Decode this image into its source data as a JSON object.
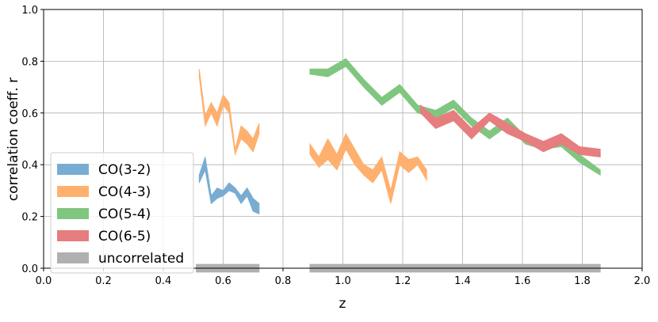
{
  "chart_data": {
    "type": "band",
    "xlabel": "z",
    "ylabel": "correlation coeff. r",
    "xlim": [
      0,
      2
    ],
    "ylim": [
      0,
      1
    ],
    "xticks": [
      {
        "value": 0,
        "label": "0.0"
      },
      {
        "value": 0.2,
        "label": "0.2"
      },
      {
        "value": 0.4,
        "label": "0.4"
      },
      {
        "value": 0.6,
        "label": "0.6"
      },
      {
        "value": 0.8,
        "label": "0.8"
      },
      {
        "value": 1,
        "label": "1.0"
      },
      {
        "value": 1.2,
        "label": "1.2"
      },
      {
        "value": 1.4,
        "label": "1.4"
      },
      {
        "value": 1.6,
        "label": "1.6"
      },
      {
        "value": 1.8,
        "label": "1.8"
      },
      {
        "value": 2,
        "label": "2.0"
      }
    ],
    "yticks": [
      {
        "value": 0,
        "label": "0.0"
      },
      {
        "value": 0.2,
        "label": "0.2"
      },
      {
        "value": 0.4,
        "label": "0.4"
      },
      {
        "value": 0.6,
        "label": "0.6"
      },
      {
        "value": 0.8,
        "label": "0.8"
      },
      {
        "value": 1,
        "label": "1.0"
      }
    ],
    "grid": true,
    "legend": "lower left",
    "series": [
      {
        "name": "CO(3-2)",
        "color": "#79acd2",
        "x": [
          0.52,
          0.54,
          0.56,
          0.58,
          0.6,
          0.62,
          0.64,
          0.66,
          0.68,
          0.7,
          0.72
        ],
        "lower": [
          0.33,
          0.38,
          0.25,
          0.27,
          0.28,
          0.3,
          0.29,
          0.25,
          0.28,
          0.22,
          0.21
        ],
        "upper": [
          0.36,
          0.43,
          0.28,
          0.31,
          0.3,
          0.33,
          0.31,
          0.28,
          0.31,
          0.27,
          0.25
        ]
      },
      {
        "name": "CO(4-3)",
        "color": "#ffb06e",
        "x": [
          0.52,
          0.54,
          0.56,
          0.58,
          0.6,
          0.62,
          0.64,
          0.66,
          0.68,
          0.7,
          0.72,
          0.8,
          0.89,
          0.92,
          0.95,
          0.98,
          1.01,
          1.04,
          1.07,
          1.1,
          1.13,
          1.16,
          1.19,
          1.22,
          1.25,
          1.28
        ],
        "lower": [
          0.74,
          0.55,
          0.6,
          0.55,
          0.63,
          0.6,
          0.44,
          0.5,
          0.48,
          0.45,
          0.52,
          null,
          0.44,
          0.39,
          0.42,
          0.38,
          0.46,
          0.4,
          0.36,
          0.33,
          0.38,
          0.25,
          0.4,
          0.37,
          0.4,
          0.34
        ],
        "upper": [
          0.77,
          0.59,
          0.64,
          0.6,
          0.67,
          0.64,
          0.46,
          0.55,
          0.53,
          0.5,
          0.56,
          null,
          0.48,
          0.43,
          0.5,
          0.44,
          0.52,
          0.46,
          0.4,
          0.38,
          0.43,
          0.3,
          0.45,
          0.42,
          0.43,
          0.38
        ]
      },
      {
        "name": "CO(5-4)",
        "color": "#80c680",
        "x": [
          0.89,
          0.95,
          1.01,
          1.07,
          1.13,
          1.19,
          1.25,
          1.31,
          1.37,
          1.43,
          1.49,
          1.55,
          1.61,
          1.67,
          1.73,
          1.79,
          1.86
        ],
        "lower": [
          0.75,
          0.74,
          0.78,
          0.7,
          0.63,
          0.68,
          0.6,
          0.58,
          0.62,
          0.55,
          0.5,
          0.55,
          0.48,
          0.46,
          0.47,
          0.41,
          0.36
        ],
        "upper": [
          0.77,
          0.77,
          0.81,
          0.73,
          0.66,
          0.71,
          0.63,
          0.61,
          0.65,
          0.58,
          0.53,
          0.58,
          0.51,
          0.49,
          0.5,
          0.44,
          0.38
        ]
      },
      {
        "name": "CO(6-5)",
        "color": "#e67d7e",
        "x": [
          1.26,
          1.31,
          1.37,
          1.43,
          1.49,
          1.55,
          1.61,
          1.67,
          1.73,
          1.79,
          1.86
        ],
        "lower": [
          0.6,
          0.54,
          0.57,
          0.5,
          0.57,
          0.52,
          0.49,
          0.45,
          0.48,
          0.44,
          0.43
        ],
        "upper": [
          0.63,
          0.58,
          0.61,
          0.54,
          0.6,
          0.56,
          0.52,
          0.49,
          0.52,
          0.47,
          0.46
        ]
      },
      {
        "name": "uncorrelated",
        "color": "#b0b0b0",
        "x": [
          0.51,
          0.72,
          0.8,
          0.89,
          1.86
        ],
        "lower": [
          -0.015,
          -0.015,
          null,
          -0.015,
          -0.015
        ],
        "upper": [
          0.015,
          0.015,
          null,
          0.015,
          0.015
        ]
      }
    ]
  }
}
